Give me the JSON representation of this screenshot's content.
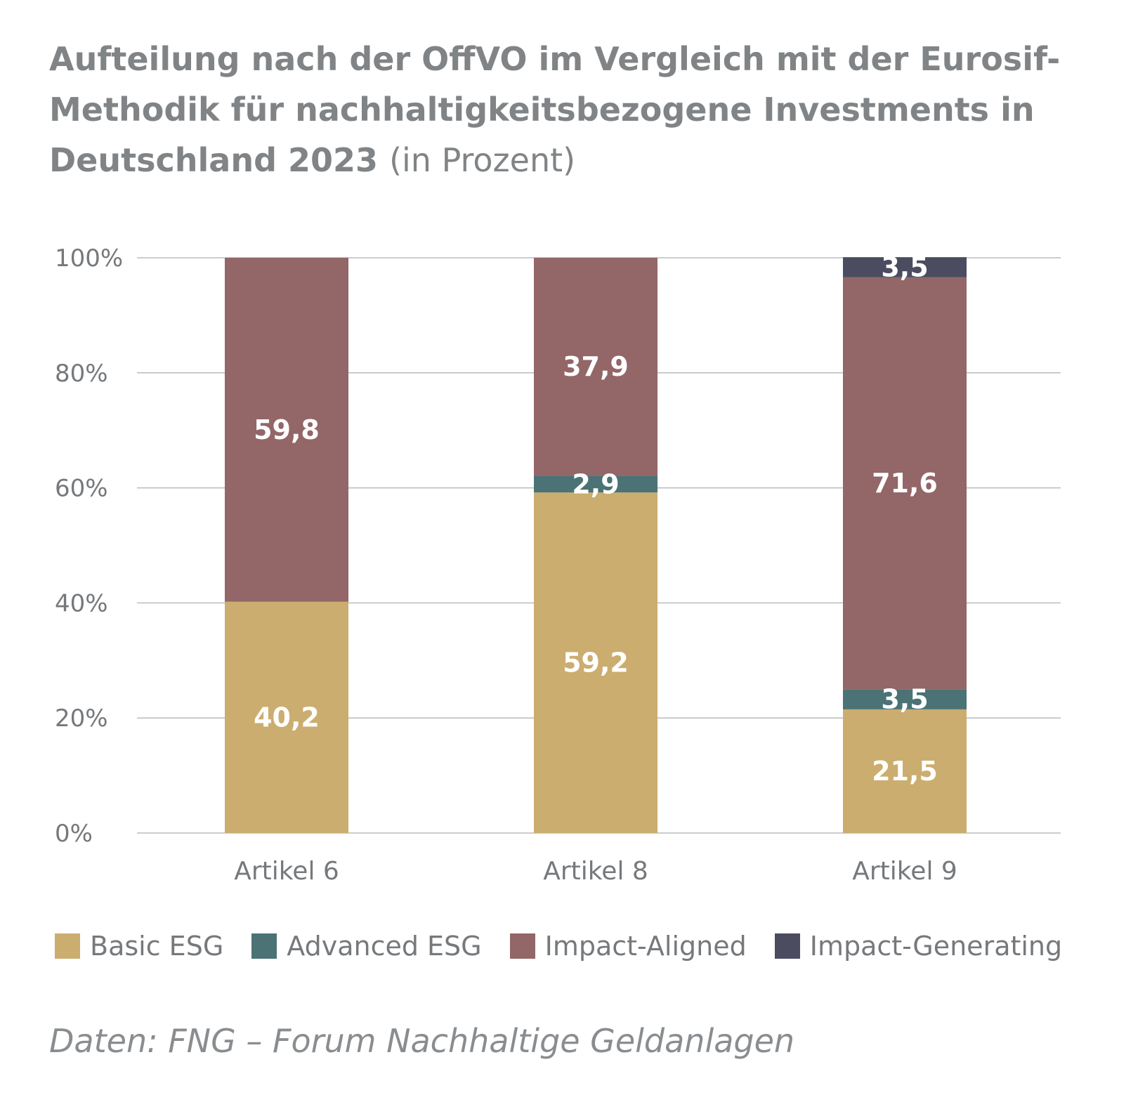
{
  "title": {
    "main": "Aufteilung nach der OffVO im Vergleich mit der Eurosif-Methodik für nachhaltigkeitsbezogene Investments in Deutschland 2023",
    "unit": "(in Prozent)"
  },
  "source": "Daten: FNG – Forum Nachhaltige Geldanlagen",
  "chart_data": {
    "type": "bar",
    "stacked": true,
    "categories": [
      "Artikel 6",
      "Artikel 8",
      "Artikel 9"
    ],
    "series": [
      {
        "name": "Basic ESG",
        "color": "#cbad6f",
        "values": [
          40.2,
          59.2,
          21.5
        ],
        "labels": [
          "40,2",
          "59,2",
          "21,5"
        ]
      },
      {
        "name": "Advanced ESG",
        "color": "#4b7275",
        "values": [
          0,
          2.9,
          3.5
        ],
        "labels": [
          "",
          "2,9",
          "3,5"
        ]
      },
      {
        "name": "Impact-Aligned",
        "color": "#936667",
        "values": [
          59.8,
          37.9,
          71.6
        ],
        "labels": [
          "59,8",
          "37,9",
          "71,6"
        ]
      },
      {
        "name": "Impact-Generating",
        "color": "#4b4c60",
        "values": [
          0,
          0,
          3.5
        ],
        "labels": [
          "",
          "",
          "3,5"
        ]
      }
    ],
    "yticks": [
      "0%",
      "20%",
      "40%",
      "60%",
      "80%",
      "100%"
    ],
    "ylim": [
      0,
      100
    ],
    "grid": true,
    "legend": "bottom"
  }
}
